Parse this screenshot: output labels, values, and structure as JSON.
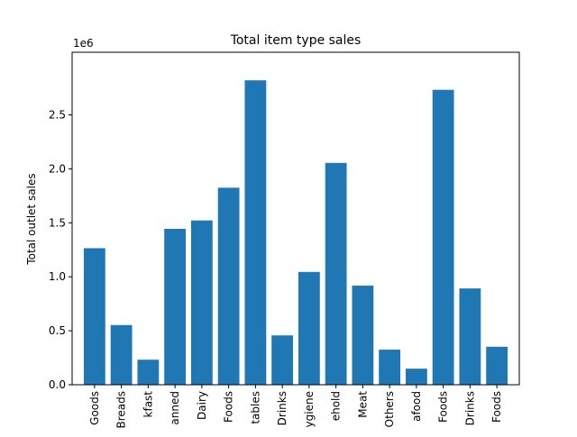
{
  "chart_data": {
    "type": "bar",
    "title": "Total item type sales",
    "xlabel": "",
    "ylabel": "Total outlet sales",
    "offset_label": "1e6",
    "categories": [
      "Goods",
      "Breads",
      "Breakfast",
      "Canned",
      "Dairy",
      "Frozen Foods",
      "Fruits and Vegetables",
      "Hard Drinks",
      "Health and Hygiene",
      "Household",
      "Meat",
      "Others",
      "Seafood",
      "Snack Foods",
      "Soft Drinks",
      "Starchy Foods"
    ],
    "tick_labels": [
      "Goods",
      "Breads",
      "kfast",
      "anned",
      "Dairy",
      "Foods",
      "tables",
      "Drinks",
      "ygiene",
      "ehold",
      "Meat",
      "Others",
      "afood",
      "Foods",
      "Drinks",
      "Foods"
    ],
    "values": [
      1265000,
      553000,
      232000,
      1444000,
      1522000,
      1825000,
      2820000,
      457000,
      1045000,
      2055000,
      918000,
      325000,
      149000,
      2732000,
      892000,
      352000
    ],
    "ylim": [
      0,
      3.08
    ],
    "yticks": [
      0.0,
      0.5,
      1.0,
      1.5,
      2.0,
      2.5
    ],
    "ytick_labels": [
      "0.0",
      "0.5",
      "1.0",
      "1.5",
      "2.0",
      "2.5"
    ],
    "bar_color": "#1f77b4",
    "grid": false,
    "legend": "none"
  }
}
